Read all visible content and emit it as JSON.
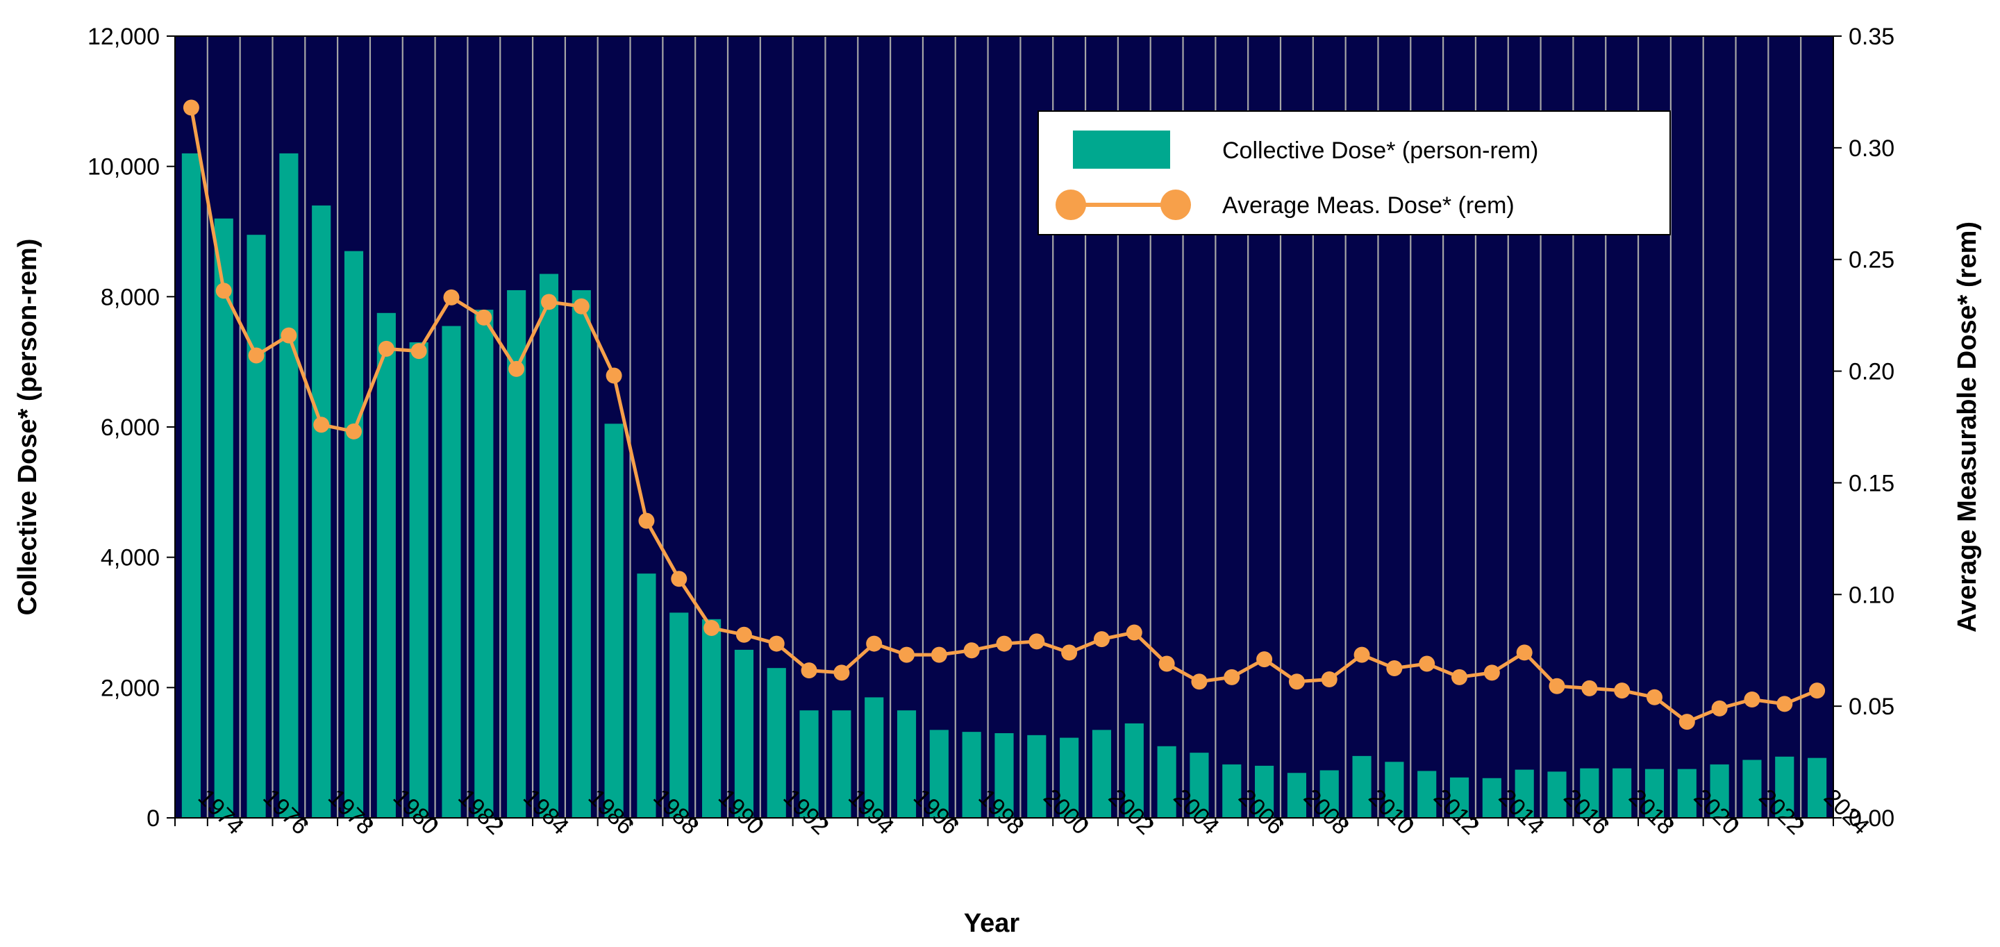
{
  "chart_data": {
    "type": "bar+line",
    "x": [
      1973,
      1974,
      1975,
      1976,
      1977,
      1978,
      1979,
      1980,
      1981,
      1982,
      1983,
      1984,
      1985,
      1986,
      1987,
      1988,
      1989,
      1990,
      1991,
      1992,
      1993,
      1994,
      1995,
      1996,
      1997,
      1998,
      1999,
      2000,
      2001,
      2002,
      2003,
      2004,
      2005,
      2006,
      2007,
      2008,
      2009,
      2010,
      2011,
      2012,
      2013,
      2014,
      2015,
      2016,
      2017,
      2018,
      2019,
      2020,
      2021,
      2022,
      2023
    ],
    "x_tick_labels": [
      "1974",
      "1976",
      "1978",
      "1980",
      "1982",
      "1984",
      "1986",
      "1988",
      "1990",
      "1992",
      "1994",
      "1996",
      "1998",
      "2000",
      "2002",
      "2004",
      "2006",
      "2008",
      "2010",
      "2012",
      "2014",
      "2016",
      "2018",
      "2020",
      "2022",
      "2024"
    ],
    "series": [
      {
        "name": "Collective Dose* (person-rem)",
        "type": "bar",
        "axis": "left",
        "color": "#00A88F",
        "values": [
          10200,
          9200,
          8950,
          10200,
          9400,
          8700,
          7750,
          7300,
          7550,
          7800,
          8100,
          8350,
          8100,
          6050,
          3750,
          3150,
          3050,
          2580,
          2300,
          1650,
          1650,
          1850,
          1650,
          1350,
          1320,
          1300,
          1270,
          1230,
          1350,
          1450,
          1100,
          1000,
          820,
          800,
          690,
          730,
          950,
          860,
          720,
          620,
          610,
          740,
          710,
          760,
          760,
          750,
          750,
          820,
          890,
          940,
          920
        ]
      },
      {
        "name": "Average Meas. Dose* (rem)",
        "type": "line",
        "axis": "right",
        "color": "#F7A04A",
        "values": [
          0.318,
          0.236,
          0.207,
          0.216,
          0.176,
          0.173,
          0.21,
          0.209,
          0.233,
          0.224,
          0.201,
          0.231,
          0.229,
          0.198,
          0.133,
          0.107,
          0.085,
          0.082,
          0.078,
          0.066,
          0.065,
          0.078,
          0.073,
          0.073,
          0.075,
          0.078,
          0.079,
          0.074,
          0.08,
          0.083,
          0.069,
          0.061,
          0.063,
          0.071,
          0.061,
          0.062,
          0.073,
          0.067,
          0.069,
          0.063,
          0.065,
          0.074,
          0.059,
          0.058,
          0.057,
          0.054,
          0.043,
          0.049,
          0.053,
          0.051,
          0.057
        ]
      }
    ],
    "y_left": {
      "label": "Collective Dose* (person-rem)",
      "min": 0,
      "max": 12000,
      "ticks": [
        "0",
        "2,000",
        "4,000",
        "6,000",
        "8,000",
        "10,000",
        "12,000"
      ]
    },
    "y_right": {
      "label": "Average Measurable Dose* (rem)",
      "min": 0,
      "max": 0.35,
      "ticks": [
        "0.00",
        "0.05",
        "0.10",
        "0.15",
        "0.20",
        "0.25",
        "0.30",
        "0.35"
      ]
    },
    "xlabel": "Year",
    "legend": {
      "position": "top-right",
      "entries": [
        "Collective Dose* (person-rem)",
        "Average Meas. Dose* (rem)"
      ]
    },
    "plot_background": "#03034A",
    "grid": "vertical"
  }
}
